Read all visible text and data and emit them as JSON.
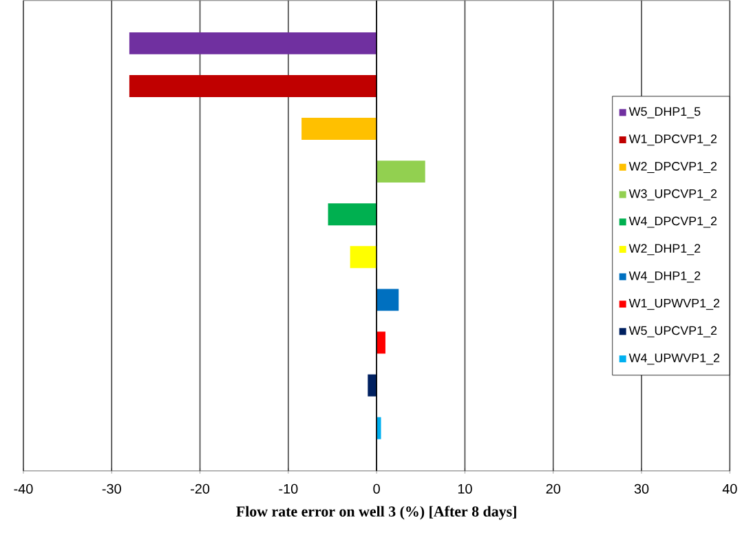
{
  "chart_data": {
    "type": "bar",
    "orientation": "horizontal",
    "xlabel": "Flow rate error on well 3 (%) [After 8 days]",
    "categories": [
      null,
      null,
      null,
      null,
      null,
      null,
      null,
      null,
      null,
      null
    ],
    "series": [
      {
        "name": "W5_DHP1_5",
        "color": "#7030a0",
        "values": [
          -28,
          null,
          null,
          null,
          null,
          null,
          null,
          null,
          null,
          null
        ]
      },
      {
        "name": "W1_DPCVP1_2",
        "color": "#c00000",
        "values": [
          null,
          -28,
          null,
          null,
          null,
          null,
          null,
          null,
          null,
          null
        ]
      },
      {
        "name": "W2_DPCVP1_2",
        "color": "#ffc000",
        "values": [
          null,
          null,
          -8.5,
          null,
          null,
          null,
          null,
          null,
          null,
          null
        ]
      },
      {
        "name": "W3_UPCVP1_2",
        "color": "#92d050",
        "values": [
          null,
          null,
          null,
          5.5,
          null,
          null,
          null,
          null,
          null,
          null
        ]
      },
      {
        "name": "W4_DPCVP1_2",
        "color": "#00b050",
        "values": [
          null,
          null,
          null,
          null,
          -5.5,
          null,
          null,
          null,
          null,
          null
        ]
      },
      {
        "name": "W2_DHP1_2",
        "color": "#ffff00",
        "values": [
          null,
          null,
          null,
          null,
          null,
          -3.0,
          null,
          null,
          null,
          null
        ]
      },
      {
        "name": "W4_DHP1_2",
        "color": "#0070c0",
        "values": [
          null,
          null,
          null,
          null,
          null,
          null,
          2.5,
          null,
          null,
          null
        ]
      },
      {
        "name": "W1_UPWVP1_2",
        "color": "#ff0000",
        "values": [
          null,
          null,
          null,
          null,
          null,
          null,
          null,
          1,
          null,
          null
        ]
      },
      {
        "name": "W5_UPCVP1_2",
        "color": "#002060",
        "values": [
          null,
          null,
          null,
          null,
          null,
          null,
          null,
          null,
          -1,
          null
        ]
      },
      {
        "name": "W4_UPWVP1_2",
        "color": "#00b0f0",
        "values": [
          null,
          null,
          null,
          null,
          null,
          null,
          null,
          null,
          null,
          0.5
        ]
      }
    ],
    "xlim": [
      -40,
      40
    ],
    "xticks": [
      -40,
      -30,
      -20,
      -10,
      0,
      10,
      20,
      30,
      40
    ],
    "grid": "x",
    "legend": "right"
  }
}
